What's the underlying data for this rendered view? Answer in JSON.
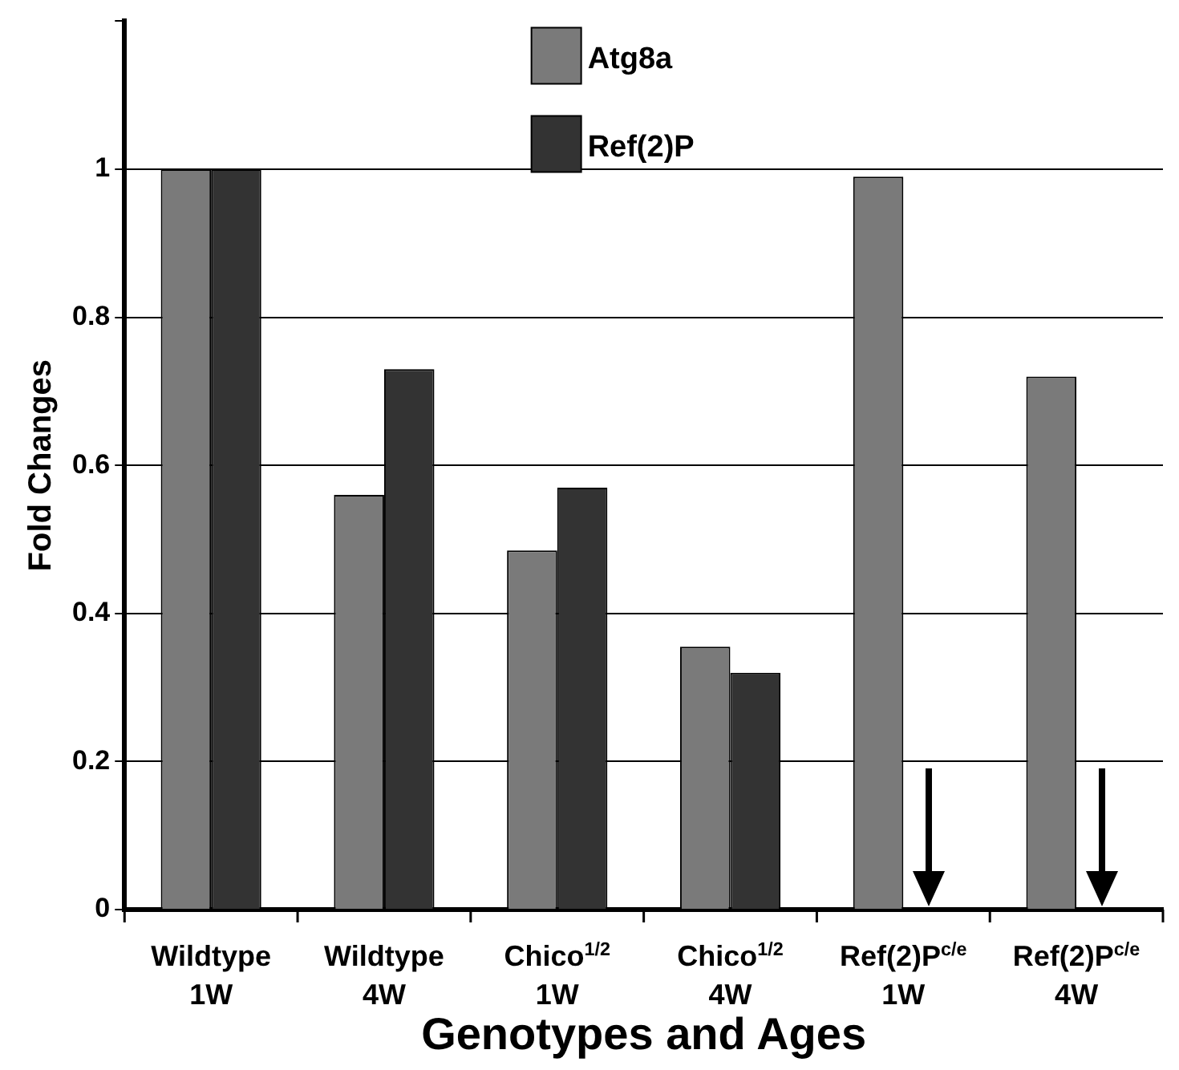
{
  "chart_data": {
    "type": "bar",
    "xlabel": "Genotypes and Ages",
    "ylabel": "Fold Changes",
    "categories": [
      "Wildtype\n1W",
      "Wildtype\n4W",
      "Chico$^{1/2}$\n1W",
      "Chico$^{1/2}$\n4W",
      "Ref(2)P$^{c/e}$\n1W",
      "Ref(2)P$^{c/e}$\n4W"
    ],
    "series": [
      {
        "name": "Atg8a",
        "color": "#7a7a7a",
        "values": [
          1.0,
          0.56,
          0.485,
          0.355,
          0.99,
          0.72
        ]
      },
      {
        "name": "Ref(2)P",
        "color": "#333333",
        "values": [
          1.0,
          0.73,
          0.57,
          0.32,
          0,
          0
        ]
      }
    ],
    "ylim": [
      0,
      1.2
    ],
    "yticks": [
      0,
      0.2,
      0.4,
      0.6,
      0.8,
      1,
      {
        "value": 1.2,
        "label": null
      }
    ],
    "grid": "y",
    "legend": "top"
  }
}
